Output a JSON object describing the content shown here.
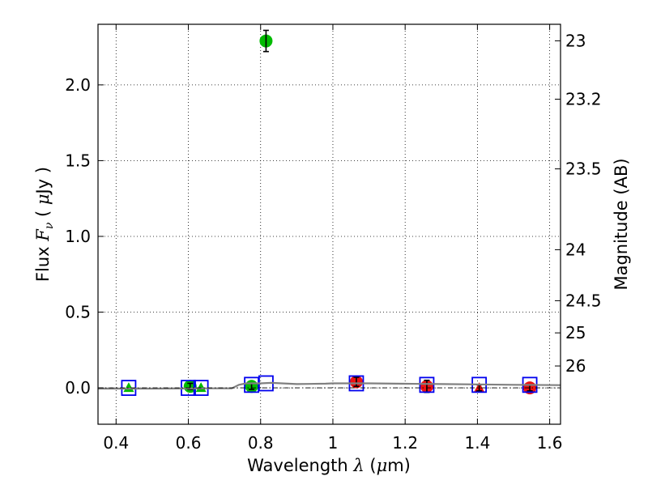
{
  "chart_data": {
    "type": "scatter",
    "title": "",
    "xlabel": "Wavelength  λ (μm)",
    "ylabel": "Flux  Fν  ( μJy )",
    "y2label": "Magnitude (AB)",
    "xlim": [
      0.35,
      1.63
    ],
    "ylim": [
      -0.24,
      2.4
    ],
    "grid": true,
    "legend": "none",
    "x_ticks": [
      0.4,
      0.6,
      0.8,
      1.0,
      1.2,
      1.4,
      1.6
    ],
    "x_tick_labels": [
      "0.4",
      "0.6",
      "0.8",
      "1",
      "1.2",
      "1.4",
      "1.6"
    ],
    "y_ticks": [
      0.0,
      0.5,
      1.0,
      1.5,
      2.0
    ],
    "y_tick_labels": [
      "0.0",
      "0.5",
      "1.0",
      "1.5",
      "2.0"
    ],
    "y2_ticks": [
      23,
      23.2,
      23.5,
      24,
      24.5,
      25,
      26
    ],
    "y2_tick_labels": [
      "23",
      "23.2",
      "23.5",
      "24",
      "24.5",
      "25",
      "26"
    ],
    "colors": {
      "green": "#00bb00",
      "red": "#ee1111",
      "blue": "#0000ee",
      "sed": "#808080",
      "errorbar": "#000000"
    },
    "series": [
      {
        "marker": "circle",
        "color": "green",
        "x": [
          0.605,
          0.775,
          0.815
        ],
        "y": [
          0.01,
          0.01,
          2.29
        ],
        "yerr": [
          0.02,
          0.02,
          0.07
        ]
      },
      {
        "marker": "triangle",
        "color": "green",
        "x": [
          0.435,
          0.635
        ],
        "y": [
          0.0,
          0.0
        ],
        "yerr": [
          0.0,
          0.0
        ]
      },
      {
        "marker": "circle",
        "color": "red",
        "x": [
          1.065,
          1.26,
          1.545
        ],
        "y": [
          0.04,
          0.01,
          0.0
        ],
        "yerr": [
          0.03,
          0.04,
          0.02
        ]
      },
      {
        "marker": "triangle",
        "color": "red",
        "x": [
          1.405
        ],
        "y": [
          0.0
        ],
        "yerr": [
          0.02
        ]
      },
      {
        "marker": "open-square",
        "color": "blue",
        "x": [
          0.435,
          0.6,
          0.635,
          0.775,
          0.815,
          1.065,
          1.26,
          1.405,
          1.545
        ],
        "y": [
          0.0,
          0.0,
          0.0,
          0.02,
          0.03,
          0.03,
          0.02,
          0.02,
          0.02
        ]
      },
      {
        "marker": "line",
        "color": "sed",
        "x": [
          0.35,
          0.5,
          0.65,
          0.72,
          0.74,
          0.76,
          0.8,
          0.83,
          0.9,
          0.98,
          1.0,
          1.1,
          1.2,
          1.3,
          1.4,
          1.5,
          1.63
        ],
        "y": [
          -0.005,
          -0.005,
          -0.003,
          -0.003,
          0.02,
          0.03,
          0.03,
          0.033,
          0.025,
          0.028,
          0.03,
          0.03,
          0.027,
          0.025,
          0.023,
          0.02,
          0.018
        ]
      },
      {
        "marker": "dashdot-line",
        "color": "errorbar",
        "x": [
          0.35,
          1.63
        ],
        "y": [
          0.0,
          0.0
        ]
      }
    ]
  }
}
